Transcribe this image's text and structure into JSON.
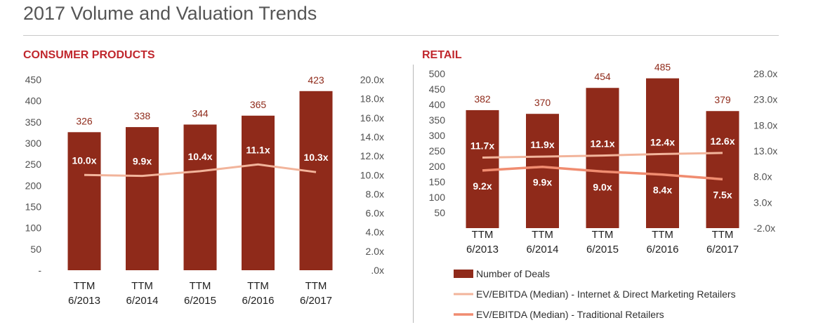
{
  "page": {
    "title": "2017 Volume and Valuation Trends"
  },
  "colors": {
    "bar": "#8f2a1a",
    "internet_line": "#f2b49b",
    "traditional_line": "#f08c70",
    "panel_title": "#c0272d",
    "bar_label": "#8f2a1a"
  },
  "chart_data": [
    {
      "type": "bar",
      "title": "CONSUMER PRODUCTS",
      "categories": [
        "TTM\n6/2013",
        "TTM\n6/2014",
        "TTM\n6/2015",
        "TTM\n6/2016",
        "TTM\n6/2017"
      ],
      "y_ticks": [
        "450",
        "400",
        "350",
        "300",
        "250",
        "200",
        "150",
        "100",
        "50",
        "-"
      ],
      "y2_ticks": [
        "20.0x",
        "18.0x",
        "16.0x",
        "14.0x",
        "12.0x",
        "10.0x",
        "8.0x",
        "6.0x",
        "4.0x",
        "2.0x",
        ".0x"
      ],
      "ylim": [
        0,
        450
      ],
      "y2lim": [
        0,
        20
      ],
      "series": [
        {
          "name": "Number of Deals",
          "type": "bar",
          "values": [
            326,
            338,
            344,
            365,
            423
          ],
          "labels": [
            "326",
            "338",
            "344",
            "365",
            "423"
          ]
        },
        {
          "name": "EV/EBITDA (Median)",
          "type": "line",
          "axis": "secondary",
          "values": [
            10.0,
            9.9,
            10.4,
            11.1,
            10.3
          ],
          "labels": [
            "10.0x",
            "9.9x",
            "10.4x",
            "11.1x",
            "10.3x"
          ]
        }
      ]
    },
    {
      "type": "bar",
      "title": "RETAIL",
      "categories": [
        "TTM\n6/2013",
        "TTM\n6/2014",
        "TTM\n6/2015",
        "TTM\n6/2016",
        "TTM\n6/2017"
      ],
      "y_ticks": [
        "500",
        "450",
        "400",
        "350",
        "300",
        "250",
        "200",
        "150",
        "100",
        "50"
      ],
      "y2_ticks": [
        "28.0x",
        "23.0x",
        "18.0x",
        "13.0x",
        "8.0x",
        "3.0x",
        "-2.0x"
      ],
      "ylim": [
        0,
        500
      ],
      "y2lim": [
        -2,
        28
      ],
      "series": [
        {
          "name": "Number of Deals",
          "type": "bar",
          "values": [
            382,
            370,
            454,
            485,
            379
          ],
          "labels": [
            "382",
            "370",
            "454",
            "485",
            "379"
          ]
        },
        {
          "name": "EV/EBITDA (Median) - Internet & Direct Marketing Retailers",
          "type": "line",
          "axis": "secondary",
          "values": [
            11.7,
            11.9,
            12.1,
            12.4,
            12.6
          ],
          "labels": [
            "11.7x",
            "11.9x",
            "12.1x",
            "12.4x",
            "12.6x"
          ]
        },
        {
          "name": "EV/EBITDA (Median) - Traditional Retailers",
          "type": "line",
          "axis": "secondary",
          "values": [
            9.2,
            9.9,
            9.0,
            8.4,
            7.5
          ],
          "labels": [
            "9.2x",
            "9.9x",
            "9.0x",
            "8.4x",
            "7.5x"
          ]
        }
      ],
      "legend": {
        "position": "bottom",
        "entries": [
          "Number of Deals",
          "EV/EBITDA (Median) - Internet & Direct Marketing Retailers",
          "EV/EBITDA (Median) - Traditional Retailers"
        ]
      }
    }
  ]
}
